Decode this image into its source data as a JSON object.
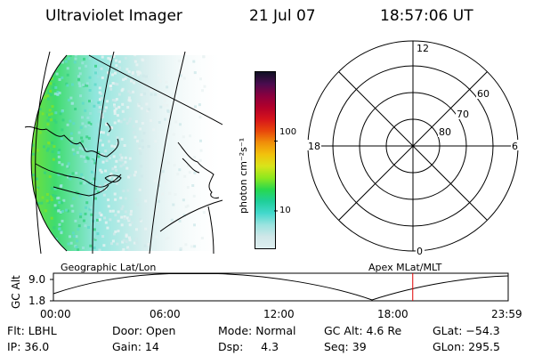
{
  "header": {
    "instrument": "Ultraviolet Imager",
    "date": "21 Jul 07",
    "time": "18:57:06 UT"
  },
  "colorbar": {
    "unit_label": "photon cm⁻²s⁻¹",
    "scale": "log",
    "range": [
      3,
      1000
    ],
    "tick_labels": [
      "100",
      "10"
    ],
    "colors": [
      "#dfeff0",
      "#cfe7e8",
      "#9be3df",
      "#43d8cc",
      "#1fcf9a",
      "#28d84e",
      "#8ee81e",
      "#d9e41a",
      "#f2c20c",
      "#f08f0a",
      "#e8460b",
      "#d6141c",
      "#b3002a",
      "#8a003f",
      "#4a0c4f",
      "#101024"
    ]
  },
  "polar_plot": {
    "hour_labels": {
      "top": "12",
      "left": "18",
      "right": "6",
      "bottom": "0"
    },
    "lat_labels": [
      "60",
      "70",
      "80"
    ]
  },
  "altitude_plot": {
    "axis_title": "GC Alt",
    "y_ticks": [
      "9.0",
      "1.8"
    ],
    "x_ticks": [
      "00:00",
      "06:00",
      "12:00",
      "18:00",
      "23:59"
    ],
    "left_caption": "Geographic Lat/Lon",
    "right_caption": "Apex MLat/MLT",
    "marker_time": "18:57",
    "colors": {
      "marker": "#e00000"
    }
  },
  "info": {
    "row1": {
      "flt": "Flt: LBHL",
      "door": "Door: Open",
      "mode": "Mode: Normal",
      "gcalt": "GC Alt: 4.6 Re",
      "glat": "GLat: −54.3"
    },
    "row2": {
      "ip": "IP: 36.0",
      "gain": "Gain: 14",
      "dsp": "Dsp:     4.3",
      "seq": "Seq: 39",
      "glon": "GLon: 295.5"
    }
  }
}
